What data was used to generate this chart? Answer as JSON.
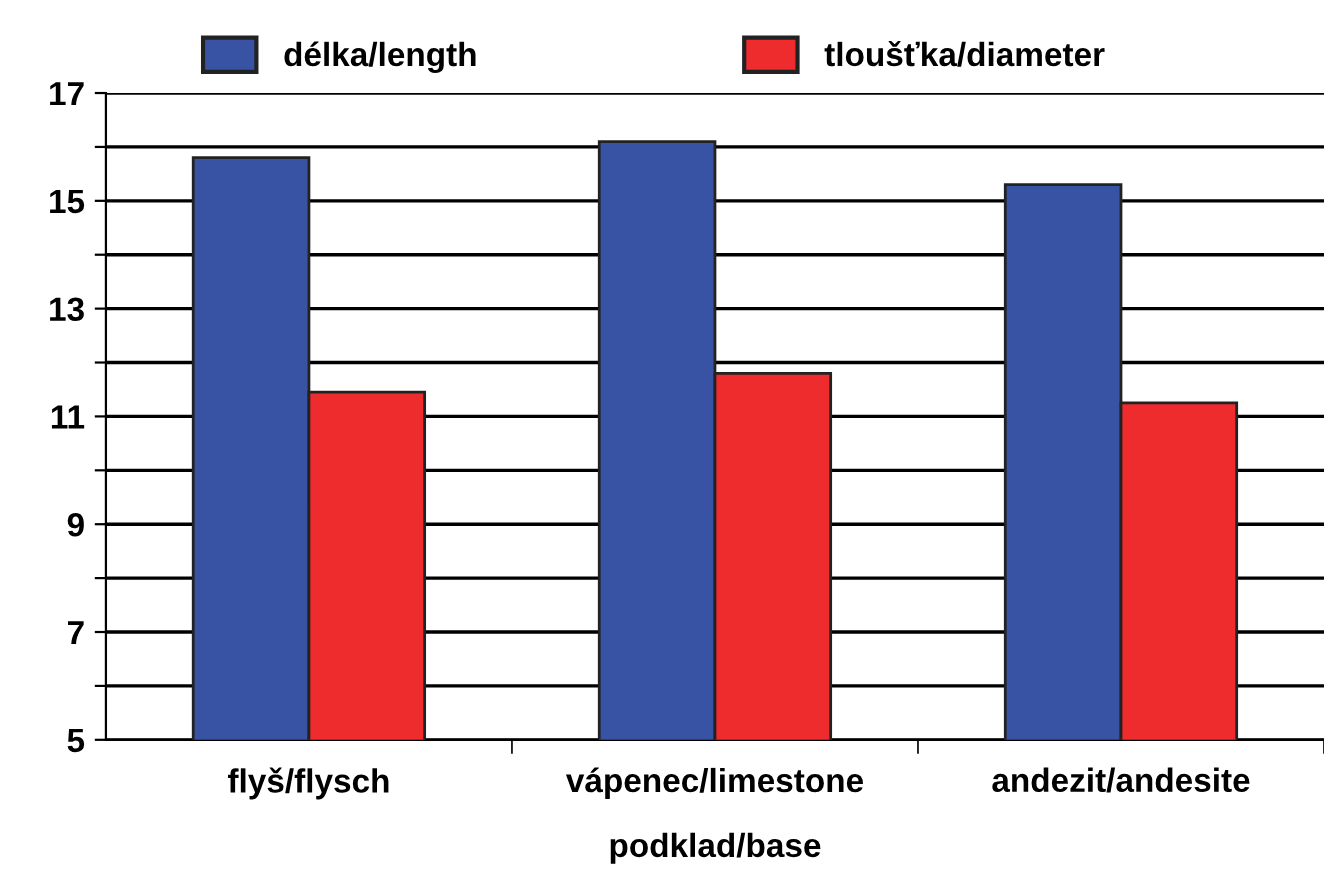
{
  "chart_data": {
    "type": "bar",
    "xlabel": "podklad/base",
    "categories": [
      "flyš/flysch",
      "vápenec/limestone",
      "andezit/andesite"
    ],
    "series": [
      {
        "name": "délka/length",
        "color": "#3953a4",
        "values": [
          15.8,
          16.1,
          15.3
        ]
      },
      {
        "name": "tloušťka/diameter",
        "color": "#ee2c2e",
        "values": [
          11.45,
          11.8,
          11.25
        ]
      }
    ],
    "ylim": [
      5,
      17
    ],
    "yticks": [
      5,
      {
        "value": 6,
        "label": null
      },
      7,
      {
        "value": 8,
        "label": null
      },
      9,
      {
        "value": 10,
        "label": null
      },
      11,
      {
        "value": 12,
        "label": null
      },
      13,
      {
        "value": 14,
        "label": null
      },
      15,
      {
        "value": 16,
        "label": null
      },
      17
    ],
    "grid": "y",
    "legend": "top"
  }
}
